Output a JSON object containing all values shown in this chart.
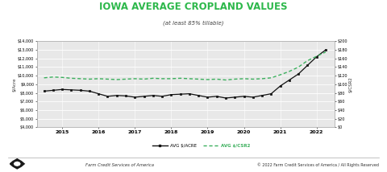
{
  "title": "IOWA AVERAGE CROPLAND VALUES",
  "subtitle": "(at least 85% tillable)",
  "title_color": "#2db84b",
  "subtitle_color": "#444444",
  "bg_color": "#ffffff",
  "plot_bg_color": "#e8e8e8",
  "footer_left": "Farm Credit Services of America",
  "footer_right": "© 2022 Farm Credit Services of America / All Rights Reserved",
  "legend_line1": "AVG $/ACRE",
  "legend_line2": "AVG $/CSR2",
  "ylabel_left": "$/Acre",
  "ylabel_right": "$/CSR2",
  "ylim_left": [
    4000,
    14000
  ],
  "ylim_right": [
    0,
    200
  ],
  "yticks_left": [
    4000,
    5000,
    6000,
    7000,
    8000,
    9000,
    10000,
    11000,
    12000,
    13000,
    14000
  ],
  "yticks_right": [
    0,
    20,
    40,
    60,
    80,
    100,
    120,
    140,
    160,
    180,
    200
  ],
  "x_per_acre": [
    2014.5,
    2014.75,
    2015.0,
    2015.25,
    2015.5,
    2015.75,
    2016.0,
    2016.25,
    2016.5,
    2016.75,
    2017.0,
    2017.25,
    2017.5,
    2017.75,
    2018.0,
    2018.25,
    2018.5,
    2018.75,
    2019.0,
    2019.25,
    2019.5,
    2019.75,
    2020.0,
    2020.25,
    2020.5,
    2020.75,
    2021.0,
    2021.25,
    2021.5,
    2021.75,
    2022.0,
    2022.25
  ],
  "y_per_acre": [
    8200,
    8300,
    8400,
    8350,
    8300,
    8200,
    7900,
    7600,
    7700,
    7650,
    7500,
    7600,
    7700,
    7600,
    7800,
    7850,
    7900,
    7700,
    7500,
    7600,
    7400,
    7500,
    7600,
    7500,
    7700,
    7900,
    8800,
    9500,
    10200,
    11200,
    12200,
    13000
  ],
  "x_csr2": [
    2014.5,
    2014.75,
    2015.0,
    2015.25,
    2015.5,
    2015.75,
    2016.0,
    2016.25,
    2016.5,
    2016.75,
    2017.0,
    2017.25,
    2017.5,
    2017.75,
    2018.0,
    2018.25,
    2018.5,
    2018.75,
    2019.0,
    2019.25,
    2019.5,
    2019.75,
    2020.0,
    2020.25,
    2020.5,
    2020.75,
    2021.0,
    2021.25,
    2021.5,
    2021.75,
    2022.0,
    2022.25
  ],
  "y_csr2": [
    115,
    117,
    116,
    114,
    113,
    112,
    113,
    112,
    111,
    112,
    113,
    112,
    114,
    113,
    113,
    114,
    113,
    112,
    111,
    112,
    110,
    112,
    113,
    112,
    113,
    115,
    122,
    130,
    140,
    155,
    165,
    175
  ],
  "line1_color": "#111111",
  "line2_color": "#3aaf5c",
  "xtick_years": [
    2015,
    2016,
    2017,
    2018,
    2019,
    2020,
    2021,
    2022
  ],
  "xlim": [
    2014.3,
    2022.5
  ]
}
